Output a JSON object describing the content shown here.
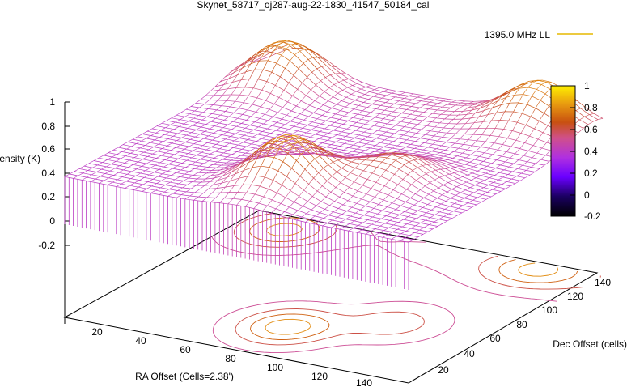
{
  "chart_data": {
    "type": "surface",
    "title": "Skynet_58717_oj287-aug-22-1830_41547_50184_cal",
    "zlabel": "Intensity (K)",
    "xlabel": "RA Offset (Cells=2.38')",
    "ylabel": "Dec Offset (cells)",
    "legend": "1395.0 MHz LL",
    "legend_position": "top-right",
    "z_ticks": [
      "1",
      "0.8",
      "0.6",
      "0.4",
      "0.2",
      "0",
      "-0.2"
    ],
    "x_ticks": [
      "20",
      "40",
      "60",
      "80",
      "100",
      "120",
      "140"
    ],
    "y_ticks": [
      "20",
      "40",
      "60",
      "80",
      "100",
      "120",
      "140"
    ],
    "colorbar_ticks": [
      "1",
      "0.8",
      "0.6",
      "0.4",
      "0.2",
      "0",
      "-0.2"
    ],
    "colorbar_range": [
      -0.2,
      1.0
    ],
    "z_range": [
      -0.2,
      1.0
    ],
    "x_range": [
      1,
      150
    ],
    "y_range": [
      1,
      150
    ],
    "surface_features": [
      {
        "ra": 78,
        "dec": 35,
        "intensity": 0.82
      },
      {
        "ra": 110,
        "dec": 60,
        "intensity": 0.62
      },
      {
        "ra": 125,
        "dec": 145,
        "intensity": 0.7
      },
      {
        "ra": 20,
        "dec": 135,
        "intensity": 0.78
      }
    ],
    "baseline_intensity": 0.4,
    "colors": {
      "legend_line": "#9b30ff",
      "legend_line_end": "#e6b800",
      "axis": "#000000"
    }
  }
}
